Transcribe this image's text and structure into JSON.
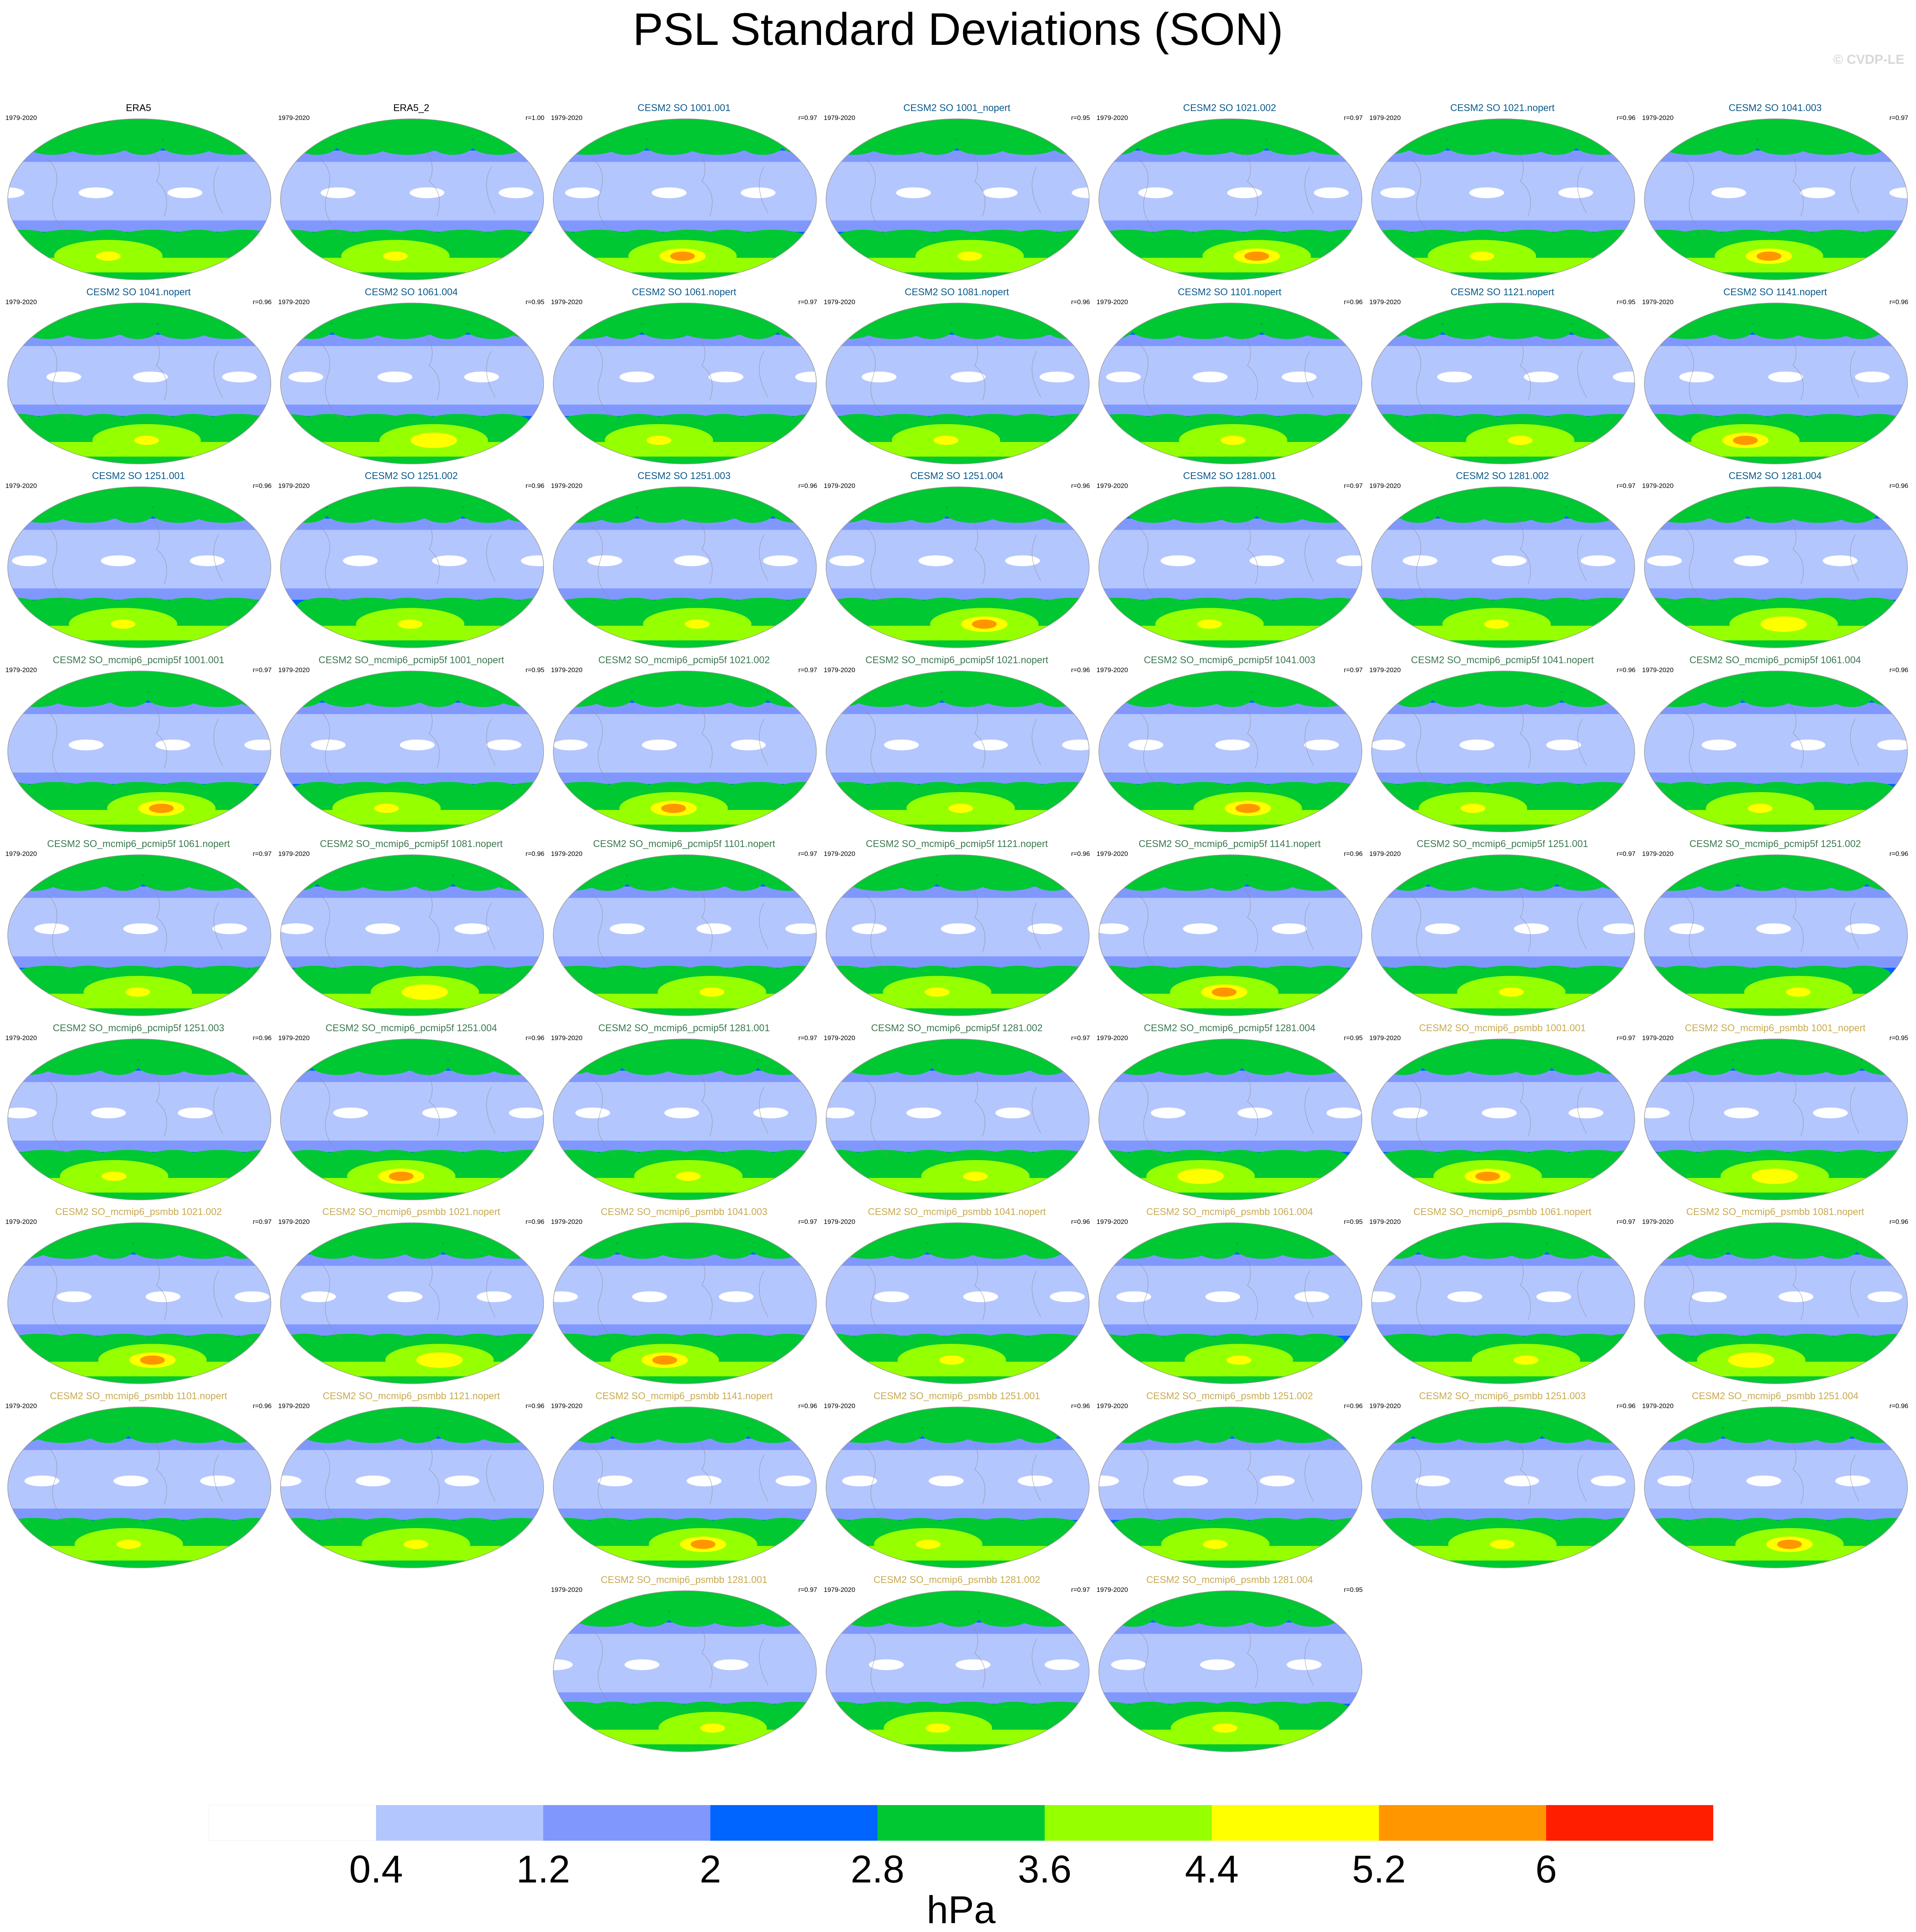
{
  "title": "PSL Standard Deviations (SON)",
  "watermark": "© CVDP-LE",
  "chart_data": {
    "type": "heatmap",
    "title": "PSL Standard Deviations (SON)",
    "period": "1979-2020",
    "colorbar": {
      "levels": [
        0.4,
        1.2,
        2,
        2.8,
        3.6,
        4.4,
        5.2,
        6
      ],
      "tick_labels": [
        "0.4",
        "1.2",
        "2",
        "2.8",
        "3.6",
        "4.4",
        "5.2",
        "6"
      ],
      "colors": [
        "#ffffff",
        "#b4c6fe",
        "#8098fe",
        "#0064ff",
        "#00c832",
        "#96ff00",
        "#ffff00",
        "#ff9600",
        "#ff1e00"
      ],
      "units": "hPa"
    },
    "panels": [
      {
        "name": "ERA5",
        "years": "1979-2020",
        "r": "",
        "group": "obs",
        "max": 4.6
      },
      {
        "name": "ERA5_2",
        "years": "1979-2020",
        "r": "r=1.00",
        "group": "obs",
        "max": 4.6
      },
      {
        "name": "CESM2 SO 1001.001",
        "years": "1979-2020",
        "r": "r=0.97",
        "group": "so",
        "max": 5.4
      },
      {
        "name": "CESM2 SO 1001_nopert",
        "years": "1979-2020",
        "r": "r=0.95",
        "group": "so",
        "max": 4.6
      },
      {
        "name": "CESM2 SO 1021.002",
        "years": "1979-2020",
        "r": "r=0.97",
        "group": "so",
        "max": 5.5
      },
      {
        "name": "CESM2 SO 1021.nopert",
        "years": "1979-2020",
        "r": "r=0.96",
        "group": "so",
        "max": 4.6
      },
      {
        "name": "CESM2 SO 1041.003",
        "years": "1979-2020",
        "r": "r=0.97",
        "group": "so",
        "max": 5.6
      },
      {
        "name": "CESM2 SO 1041.nopert",
        "years": "1979-2020",
        "r": "r=0.96",
        "group": "so",
        "max": 4.6
      },
      {
        "name": "CESM2 SO 1061.004",
        "years": "1979-2020",
        "r": "r=0.95",
        "group": "so",
        "max": 4.8
      },
      {
        "name": "CESM2 SO 1061.nopert",
        "years": "1979-2020",
        "r": "r=0.97",
        "group": "so",
        "max": 4.7
      },
      {
        "name": "CESM2 SO 1081.nopert",
        "years": "1979-2020",
        "r": "r=0.96",
        "group": "so",
        "max": 4.7
      },
      {
        "name": "CESM2 SO 1101.nopert",
        "years": "1979-2020",
        "r": "r=0.96",
        "group": "so",
        "max": 4.6
      },
      {
        "name": "CESM2 SO 1121.nopert",
        "years": "1979-2020",
        "r": "r=0.95",
        "group": "so",
        "max": 4.6
      },
      {
        "name": "CESM2 SO 1141.nopert",
        "years": "1979-2020",
        "r": "r=0.96",
        "group": "so",
        "max": 5.5
      },
      {
        "name": "CESM2 SO 1251.001",
        "years": "1979-2020",
        "r": "r=0.96",
        "group": "so",
        "max": 4.6
      },
      {
        "name": "CESM2 SO 1251.002",
        "years": "1979-2020",
        "r": "r=0.96",
        "group": "so",
        "max": 4.6
      },
      {
        "name": "CESM2 SO 1251.003",
        "years": "1979-2020",
        "r": "r=0.96",
        "group": "so",
        "max": 4.6
      },
      {
        "name": "CESM2 SO 1251.004",
        "years": "1979-2020",
        "r": "r=0.96",
        "group": "so",
        "max": 5.6
      },
      {
        "name": "CESM2 SO 1281.001",
        "years": "1979-2020",
        "r": "r=0.97",
        "group": "so",
        "max": 4.6
      },
      {
        "name": "CESM2 SO 1281.002",
        "years": "1979-2020",
        "r": "r=0.97",
        "group": "so",
        "max": 4.6
      },
      {
        "name": "CESM2 SO 1281.004",
        "years": "1979-2020",
        "r": "r=0.96",
        "group": "so",
        "max": 4.8
      },
      {
        "name": "CESM2 SO_mcmip6_pcmip5f 1001.001",
        "years": "1979-2020",
        "r": "r=0.97",
        "group": "pcmip5f",
        "max": 5.5
      },
      {
        "name": "CESM2 SO_mcmip6_pcmip5f 1001_nopert",
        "years": "1979-2020",
        "r": "r=0.95",
        "group": "pcmip5f",
        "max": 4.6
      },
      {
        "name": "CESM2 SO_mcmip6_pcmip5f 1021.002",
        "years": "1979-2020",
        "r": "r=0.97",
        "group": "pcmip5f",
        "max": 5.5
      },
      {
        "name": "CESM2 SO_mcmip6_pcmip5f 1021.nopert",
        "years": "1979-2020",
        "r": "r=0.96",
        "group": "pcmip5f",
        "max": 4.6
      },
      {
        "name": "CESM2 SO_mcmip6_pcmip5f 1041.003",
        "years": "1979-2020",
        "r": "r=0.97",
        "group": "pcmip5f",
        "max": 5.5
      },
      {
        "name": "CESM2 SO_mcmip6_pcmip5f 1041.nopert",
        "years": "1979-2020",
        "r": "r=0.96",
        "group": "pcmip5f",
        "max": 4.6
      },
      {
        "name": "CESM2 SO_mcmip6_pcmip5f 1061.004",
        "years": "1979-2020",
        "r": "r=0.96",
        "group": "pcmip5f",
        "max": 4.6
      },
      {
        "name": "CESM2 SO_mcmip6_pcmip5f 1061.nopert",
        "years": "1979-2020",
        "r": "r=0.97",
        "group": "pcmip5f",
        "max": 4.6
      },
      {
        "name": "CESM2 SO_mcmip6_pcmip5f 1081.nopert",
        "years": "1979-2020",
        "r": "r=0.96",
        "group": "pcmip5f",
        "max": 4.8
      },
      {
        "name": "CESM2 SO_mcmip6_pcmip5f 1101.nopert",
        "years": "1979-2020",
        "r": "r=0.97",
        "group": "pcmip5f",
        "max": 4.6
      },
      {
        "name": "CESM2 SO_mcmip6_pcmip5f 1121.nopert",
        "years": "1979-2020",
        "r": "r=0.96",
        "group": "pcmip5f",
        "max": 4.6
      },
      {
        "name": "CESM2 SO_mcmip6_pcmip5f 1141.nopert",
        "years": "1979-2020",
        "r": "r=0.96",
        "group": "pcmip5f",
        "max": 5.5
      },
      {
        "name": "CESM2 SO_mcmip6_pcmip5f 1251.001",
        "years": "1979-2020",
        "r": "r=0.97",
        "group": "pcmip5f",
        "max": 4.6
      },
      {
        "name": "CESM2 SO_mcmip6_pcmip5f 1251.002",
        "years": "1979-2020",
        "r": "r=0.96",
        "group": "pcmip5f",
        "max": 4.6
      },
      {
        "name": "CESM2 SO_mcmip6_pcmip5f 1251.003",
        "years": "1979-2020",
        "r": "r=0.96",
        "group": "pcmip5f",
        "max": 4.6
      },
      {
        "name": "CESM2 SO_mcmip6_pcmip5f 1251.004",
        "years": "1979-2020",
        "r": "r=0.96",
        "group": "pcmip5f",
        "max": 5.6
      },
      {
        "name": "CESM2 SO_mcmip6_pcmip5f 1281.001",
        "years": "1979-2020",
        "r": "r=0.97",
        "group": "pcmip5f",
        "max": 4.6
      },
      {
        "name": "CESM2 SO_mcmip6_pcmip5f 1281.002",
        "years": "1979-2020",
        "r": "r=0.97",
        "group": "pcmip5f",
        "max": 4.6
      },
      {
        "name": "CESM2 SO_mcmip6_pcmip5f 1281.004",
        "years": "1979-2020",
        "r": "r=0.95",
        "group": "pcmip5f",
        "max": 4.8
      },
      {
        "name": "CESM2 SO_mcmip6_psmbb 1001.001",
        "years": "1979-2020",
        "r": "r=0.97",
        "group": "psmbb",
        "max": 5.5
      },
      {
        "name": "CESM2 SO_mcmip6_psmbb 1001_nopert",
        "years": "1979-2020",
        "r": "r=0.95",
        "group": "psmbb",
        "max": 4.8
      },
      {
        "name": "CESM2 SO_mcmip6_psmbb 1021.002",
        "years": "1979-2020",
        "r": "r=0.97",
        "group": "psmbb",
        "max": 5.4
      },
      {
        "name": "CESM2 SO_mcmip6_psmbb 1021.nopert",
        "years": "1979-2020",
        "r": "r=0.96",
        "group": "psmbb",
        "max": 4.8
      },
      {
        "name": "CESM2 SO_mcmip6_psmbb 1041.003",
        "years": "1979-2020",
        "r": "r=0.97",
        "group": "psmbb",
        "max": 5.5
      },
      {
        "name": "CESM2 SO_mcmip6_psmbb 1041.nopert",
        "years": "1979-2020",
        "r": "r=0.96",
        "group": "psmbb",
        "max": 4.6
      },
      {
        "name": "CESM2 SO_mcmip6_psmbb 1061.004",
        "years": "1979-2020",
        "r": "r=0.95",
        "group": "psmbb",
        "max": 4.6
      },
      {
        "name": "CESM2 SO_mcmip6_psmbb 1061.nopert",
        "years": "1979-2020",
        "r": "r=0.97",
        "group": "psmbb",
        "max": 4.6
      },
      {
        "name": "CESM2 SO_mcmip6_psmbb 1081.nopert",
        "years": "1979-2020",
        "r": "r=0.96",
        "group": "psmbb",
        "max": 4.8
      },
      {
        "name": "CESM2 SO_mcmip6_psmbb 1101.nopert",
        "years": "1979-2020",
        "r": "r=0.96",
        "group": "psmbb",
        "max": 4.6
      },
      {
        "name": "CESM2 SO_mcmip6_psmbb 1121.nopert",
        "years": "1979-2020",
        "r": "r=0.96",
        "group": "psmbb",
        "max": 4.6
      },
      {
        "name": "CESM2 SO_mcmip6_psmbb 1141.nopert",
        "years": "1979-2020",
        "r": "r=0.96",
        "group": "psmbb",
        "max": 5.5
      },
      {
        "name": "CESM2 SO_mcmip6_psmbb 1251.001",
        "years": "1979-2020",
        "r": "r=0.96",
        "group": "psmbb",
        "max": 4.6
      },
      {
        "name": "CESM2 SO_mcmip6_psmbb 1251.002",
        "years": "1979-2020",
        "r": "r=0.96",
        "group": "psmbb",
        "max": 4.6
      },
      {
        "name": "CESM2 SO_mcmip6_psmbb 1251.003",
        "years": "1979-2020",
        "r": "r=0.96",
        "group": "psmbb",
        "max": 4.6
      },
      {
        "name": "CESM2 SO_mcmip6_psmbb 1251.004",
        "years": "1979-2020",
        "r": "r=0.96",
        "group": "psmbb",
        "max": 5.6
      },
      {
        "name": "CESM2 SO_mcmip6_psmbb 1281.001",
        "years": "1979-2020",
        "r": "r=0.97",
        "group": "psmbb",
        "max": 4.6
      },
      {
        "name": "CESM2 SO_mcmip6_psmbb 1281.002",
        "years": "1979-2020",
        "r": "r=0.97",
        "group": "psmbb",
        "max": 4.6
      },
      {
        "name": "CESM2 SO_mcmip6_psmbb 1281.004",
        "years": "1979-2020",
        "r": "r=0.95",
        "group": "psmbb",
        "max": 4.6
      }
    ],
    "title_colors": {
      "obs": "#000000",
      "so": "#0a5a8c",
      "pcmip5f": "#3c7850",
      "psmbb": "#c8aa50"
    }
  }
}
